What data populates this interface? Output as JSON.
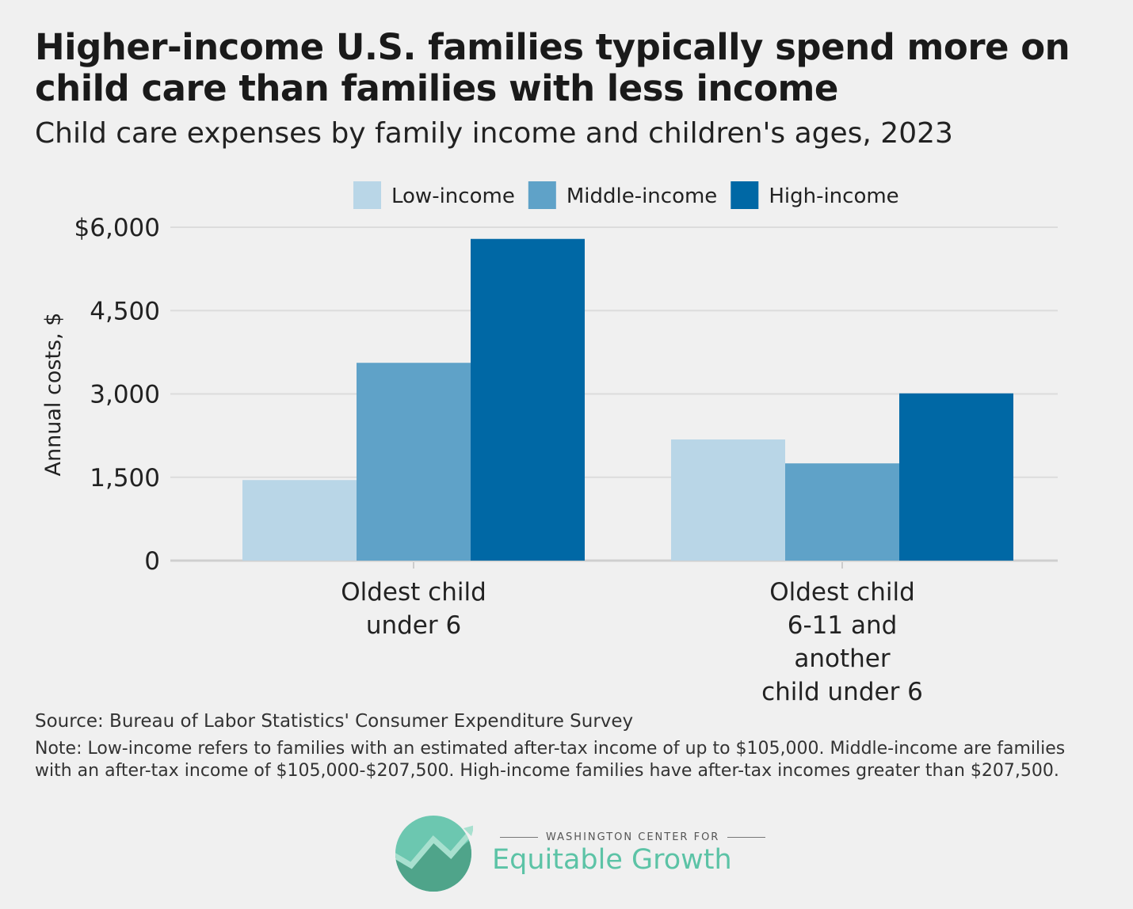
{
  "title": "Higher-income U.S. families typically spend more on child care than families with less income",
  "subtitle": "Child care expenses by family income and children's ages, 2023",
  "chart_data": {
    "type": "bar",
    "categories": [
      "Oldest child\nunder 6",
      "Oldest child\n6-11 and\nanother\nchild under 6"
    ],
    "series": [
      {
        "name": "Low-income",
        "color": "#b9d6e7",
        "values": [
          1450,
          2180
        ]
      },
      {
        "name": "Middle-income",
        "color": "#5fa2c8",
        "values": [
          3560,
          1750
        ]
      },
      {
        "name": "High-income",
        "color": "#0068a5",
        "values": [
          5790,
          3010
        ]
      }
    ],
    "ylabel": "Annual costs, $",
    "ylim": [
      0,
      6000
    ],
    "yticks": [
      0,
      1500,
      3000,
      4500,
      6000
    ],
    "ytick_labels": [
      "0",
      "1,500",
      "3,000",
      "4,500",
      "$6,000"
    ],
    "grid": true,
    "legend": "top"
  },
  "source": "Source: Bureau of Labor Statistics' Consumer Expenditure Survey",
  "note": "Note: Low-income refers to families with an estimated after-tax income of up to $105,000. Middle-income are families with an after-tax income of $105,000-$207,500. High-income families have after-tax incomes greater than $207,500.",
  "logo": {
    "top": "WASHINGTON CENTER FOR",
    "main": "Equitable Growth"
  }
}
